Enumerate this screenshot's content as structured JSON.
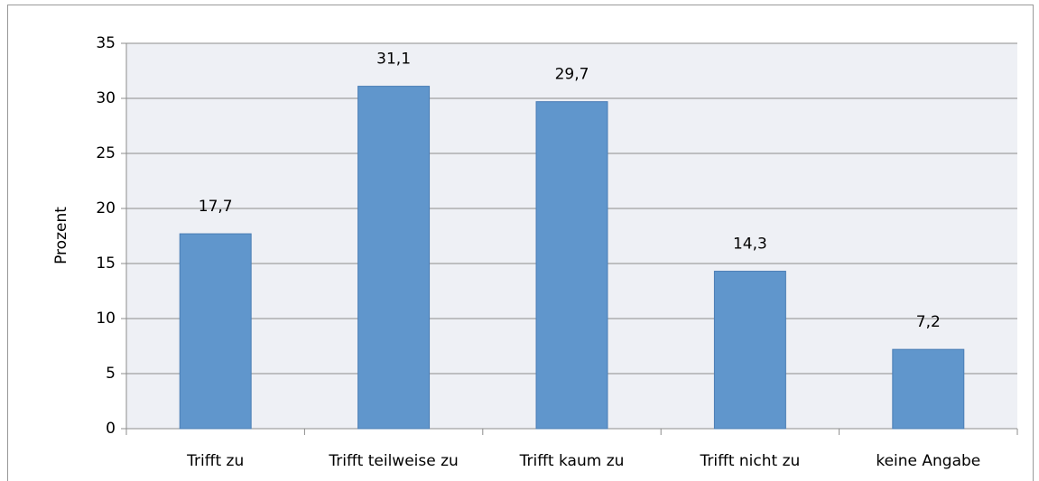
{
  "chart_data": {
    "type": "bar",
    "y_label": "Prozent",
    "categories": [
      "Trifft zu",
      "Trifft teilweise zu",
      "Trifft kaum zu",
      "Trifft nicht zu",
      "keine Angabe"
    ],
    "values": [
      17.7,
      31.1,
      29.7,
      14.3,
      7.2
    ],
    "value_labels": [
      "17,7",
      "31,1",
      "29,7",
      "14,3",
      "7,2"
    ],
    "color": "#6096cc",
    "ylim": [
      0,
      35
    ],
    "yticks": [
      0,
      5,
      10,
      15,
      20,
      25,
      30,
      35
    ],
    "grid": true
  }
}
